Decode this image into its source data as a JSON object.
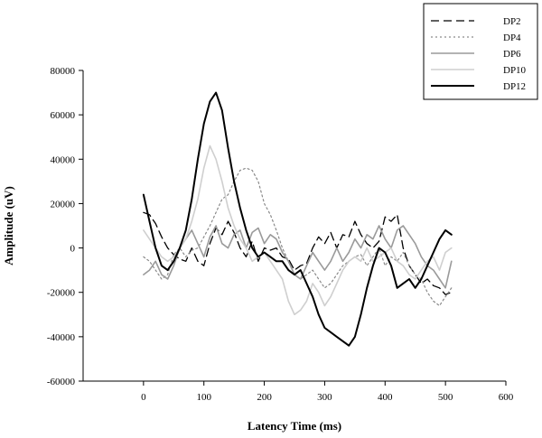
{
  "chart_data": {
    "type": "line",
    "title": "",
    "xlabel": "Latency Time (ms)",
    "ylabel": "Amplitude (uV)",
    "xlim": [
      -100,
      600
    ],
    "ylim": [
      -60000,
      80000
    ],
    "x_ticks": [
      0,
      100,
      200,
      300,
      400,
      500,
      600
    ],
    "y_ticks": [
      80000,
      60000,
      40000,
      20000,
      0,
      -20000,
      -40000,
      -60000
    ],
    "x_tick_labels": [
      "0",
      "100",
      "200",
      "300",
      "400",
      "500",
      "600"
    ],
    "y_tick_labels": [
      "80000",
      "60000",
      "40000",
      "20000",
      "0",
      "-20000",
      "-40000",
      "-60000"
    ],
    "grid": false,
    "legend_position": "top-right",
    "series": [
      {
        "name": "DP2",
        "color": "#000000",
        "dash": "9,5",
        "width": 1.3,
        "x": [
          0,
          10,
          20,
          30,
          40,
          50,
          60,
          70,
          80,
          90,
          100,
          110,
          120,
          130,
          140,
          150,
          160,
          170,
          180,
          190,
          200,
          210,
          220,
          230,
          240,
          250,
          260,
          270,
          280,
          290,
          300,
          310,
          320,
          330,
          340,
          350,
          360,
          370,
          380,
          390,
          400,
          410,
          420,
          430,
          440,
          450,
          460,
          470,
          480,
          490,
          500,
          510
        ],
        "y": [
          16000,
          15000,
          11000,
          5000,
          0,
          -3000,
          -5000,
          -6000,
          0,
          -6000,
          -8000,
          2000,
          9000,
          6000,
          12000,
          7000,
          0,
          -4000,
          3000,
          -6000,
          0,
          -1000,
          0,
          -4000,
          -5000,
          -10000,
          -8000,
          -7000,
          0,
          5000,
          2000,
          7000,
          0,
          6000,
          5000,
          12000,
          6000,
          2000,
          0,
          3000,
          14000,
          12000,
          15000,
          0,
          -8000,
          -12000,
          -16000,
          -14000,
          -17000,
          -18000,
          -21000,
          -20000
        ]
      },
      {
        "name": "DP4",
        "color": "#8a8a8a",
        "dash": "2,3",
        "width": 1.2,
        "x": [
          0,
          10,
          20,
          30,
          40,
          50,
          60,
          70,
          80,
          90,
          100,
          110,
          120,
          130,
          140,
          150,
          160,
          170,
          180,
          190,
          200,
          210,
          220,
          230,
          240,
          250,
          260,
          270,
          280,
          290,
          300,
          310,
          320,
          330,
          340,
          350,
          360,
          370,
          380,
          390,
          400,
          410,
          420,
          430,
          440,
          450,
          460,
          470,
          480,
          490,
          500,
          510
        ],
        "y": [
          -4000,
          -6000,
          -10000,
          -14000,
          -12000,
          -3000,
          0,
          -4000,
          -1000,
          0,
          5000,
          10000,
          16000,
          22000,
          24000,
          30000,
          35000,
          36000,
          35000,
          30000,
          20000,
          15000,
          8000,
          0,
          -6000,
          -12000,
          -14000,
          -12000,
          -10000,
          -14000,
          -18000,
          -16000,
          -12000,
          -8000,
          -6000,
          -4000,
          -3000,
          -8000,
          -4000,
          0,
          -8000,
          -4000,
          -6000,
          -2000,
          -8000,
          -12000,
          -14000,
          -20000,
          -24000,
          -26000,
          -22000,
          -18000
        ]
      },
      {
        "name": "DP6",
        "color": "#9a9a9a",
        "dash": "",
        "width": 1.6,
        "x": [
          0,
          10,
          20,
          30,
          40,
          50,
          60,
          70,
          80,
          90,
          100,
          110,
          120,
          130,
          140,
          150,
          160,
          170,
          180,
          190,
          200,
          210,
          220,
          230,
          240,
          250,
          260,
          270,
          280,
          290,
          300,
          310,
          320,
          330,
          340,
          350,
          360,
          370,
          380,
          390,
          400,
          410,
          420,
          430,
          440,
          450,
          460,
          470,
          480,
          490,
          500,
          510
        ],
        "y": [
          -12000,
          -10000,
          -6000,
          -12000,
          -14000,
          -8000,
          0,
          4000,
          8000,
          2000,
          -4000,
          5000,
          10000,
          2000,
          0,
          6000,
          8000,
          0,
          7000,
          9000,
          2000,
          6000,
          4000,
          -2000,
          -6000,
          -12000,
          -14000,
          -8000,
          -2000,
          -6000,
          -10000,
          -6000,
          0,
          -6000,
          -2000,
          4000,
          0,
          6000,
          4000,
          10000,
          4000,
          0,
          8000,
          10000,
          6000,
          2000,
          -4000,
          -8000,
          -10000,
          -14000,
          -18000,
          -6000
        ]
      },
      {
        "name": "DP10",
        "color": "#cfcfcf",
        "dash": "",
        "width": 1.6,
        "x": [
          0,
          10,
          20,
          30,
          40,
          50,
          60,
          70,
          80,
          90,
          100,
          110,
          120,
          130,
          140,
          150,
          160,
          170,
          180,
          190,
          200,
          210,
          220,
          230,
          240,
          250,
          260,
          270,
          280,
          290,
          300,
          310,
          320,
          330,
          340,
          350,
          360,
          370,
          380,
          390,
          400,
          410,
          420,
          430,
          440,
          450,
          460,
          470,
          480,
          490,
          500,
          510
        ],
        "y": [
          8000,
          4000,
          0,
          -4000,
          -6000,
          -4000,
          0,
          4000,
          12000,
          22000,
          36000,
          46000,
          40000,
          30000,
          18000,
          10000,
          4000,
          0,
          -6000,
          -4000,
          -2000,
          -6000,
          -10000,
          -14000,
          -24000,
          -30000,
          -28000,
          -24000,
          -16000,
          -20000,
          -26000,
          -22000,
          -16000,
          -10000,
          -6000,
          -4000,
          -6000,
          0,
          -6000,
          -4000,
          -2000,
          0,
          -6000,
          -8000,
          -12000,
          -14000,
          -10000,
          -6000,
          -4000,
          -10000,
          -2000,
          0
        ]
      },
      {
        "name": "DP12",
        "color": "#000000",
        "dash": "",
        "width": 2.0,
        "x": [
          0,
          10,
          20,
          30,
          40,
          50,
          60,
          70,
          80,
          90,
          100,
          110,
          120,
          130,
          140,
          150,
          160,
          170,
          180,
          190,
          200,
          210,
          220,
          230,
          240,
          250,
          260,
          270,
          280,
          290,
          300,
          310,
          320,
          330,
          340,
          350,
          360,
          370,
          380,
          390,
          400,
          410,
          420,
          430,
          440,
          450,
          460,
          470,
          480,
          490,
          500,
          510
        ],
        "y": [
          24000,
          12000,
          0,
          -8000,
          -10000,
          -6000,
          0,
          8000,
          22000,
          40000,
          56000,
          66000,
          70000,
          62000,
          45000,
          30000,
          18000,
          8000,
          0,
          -4000,
          -2000,
          -4000,
          -6000,
          -6000,
          -10000,
          -12000,
          -10000,
          -16000,
          -22000,
          -30000,
          -36000,
          -38000,
          -40000,
          -42000,
          -44000,
          -40000,
          -30000,
          -18000,
          -8000,
          0,
          -2000,
          -8000,
          -18000,
          -16000,
          -14000,
          -18000,
          -14000,
          -8000,
          -2000,
          4000,
          8000,
          6000
        ]
      }
    ]
  }
}
